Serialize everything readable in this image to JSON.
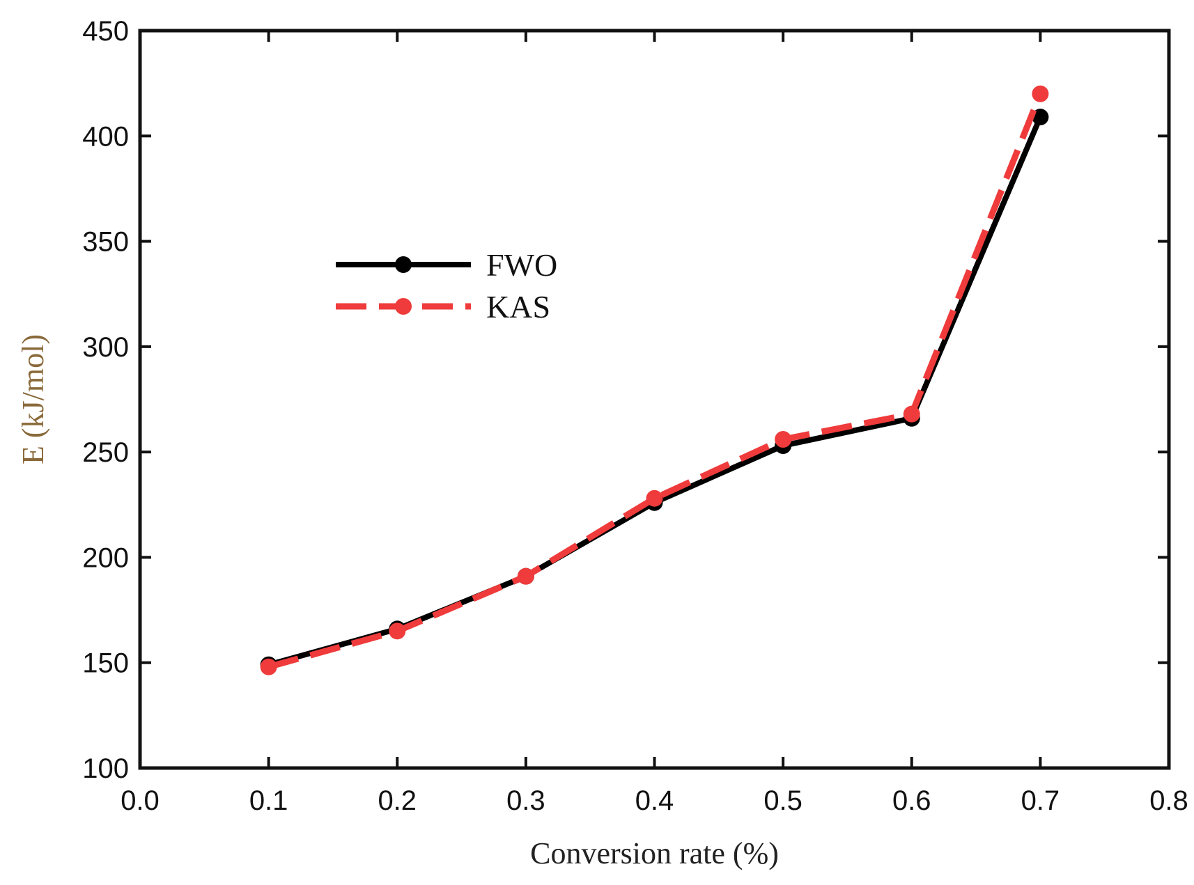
{
  "chart_data": {
    "type": "line",
    "title": "",
    "xlabel": "Conversion rate (%)",
    "ylabel": "E (kJ/mol)",
    "xlim": [
      0.0,
      0.8
    ],
    "ylim": [
      100,
      450
    ],
    "xticks": [
      "0.0",
      "0.1",
      "0.2",
      "0.3",
      "0.4",
      "0.5",
      "0.6",
      "0.7",
      "0.8"
    ],
    "yticks": [
      "100",
      "150",
      "200",
      "250",
      "300",
      "350",
      "400",
      "450"
    ],
    "grid": false,
    "legend_position": "upper-left",
    "series": [
      {
        "name": "FWO",
        "color": "#000000",
        "line_style": "solid",
        "marker": "circle",
        "x": [
          0.1,
          0.2,
          0.3,
          0.4,
          0.5,
          0.6,
          0.7
        ],
        "values": [
          149,
          166,
          191,
          226,
          253,
          266,
          409
        ]
      },
      {
        "name": "KAS",
        "color": "#ef3b3b",
        "line_style": "dashed",
        "marker": "circle",
        "x": [
          0.1,
          0.2,
          0.3,
          0.4,
          0.5,
          0.6,
          0.7
        ],
        "values": [
          148,
          165,
          191,
          228,
          256,
          268,
          420
        ]
      }
    ],
    "ylabel_color": "#8a6a3a",
    "xlabel_color": "#222222"
  }
}
